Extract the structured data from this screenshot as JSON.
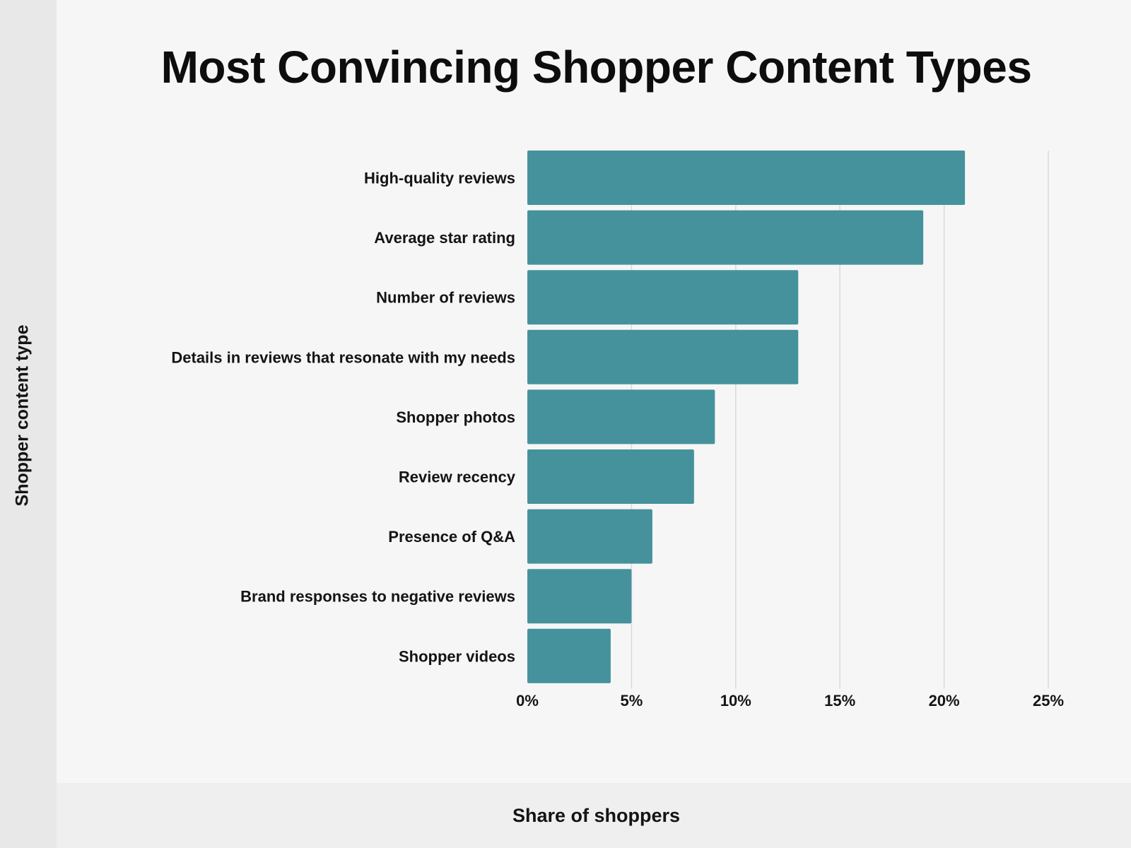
{
  "chart_data": {
    "type": "bar",
    "orientation": "horizontal",
    "title": "Most Convincing Shopper Content Types",
    "xlabel": "Share of shoppers",
    "ylabel": "Shopper content type",
    "categories": [
      "High-quality reviews",
      "Average star rating",
      "Number of reviews",
      "Details in reviews that resonate with my needs",
      "Shopper photos",
      "Review recency",
      "Presence of Q&A",
      "Brand responses to negative reviews",
      "Shopper videos"
    ],
    "values": [
      21,
      19,
      13,
      13,
      9,
      8,
      6,
      5,
      4
    ],
    "xlim": [
      0,
      25
    ],
    "xticks": [
      0,
      5,
      10,
      15,
      20,
      25
    ],
    "xtick_labels": [
      "0%",
      "5%",
      "10%",
      "15%",
      "20%",
      "25%"
    ],
    "grid": "vertical",
    "legend": "none",
    "bar_color": "#45929c",
    "grid_color": "#dadada"
  }
}
